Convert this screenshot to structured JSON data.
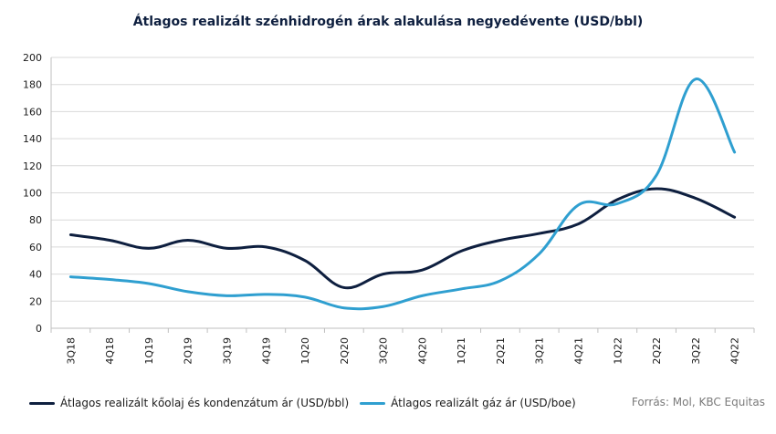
{
  "chart_data": {
    "type": "line",
    "title": "Átlagos realizált szénhidrogén árak alakulása negyedévente  (USD/bbl)",
    "xlabel": "",
    "ylabel": "",
    "categories": [
      "3Q18",
      "4Q18",
      "1Q19",
      "2Q19",
      "3Q19",
      "4Q19",
      "1Q20",
      "2Q20",
      "3Q20",
      "4Q20",
      "1Q21",
      "2Q21",
      "3Q21",
      "4Q21",
      "1Q22",
      "2Q22",
      "3Q22",
      "4Q22"
    ],
    "ylim": [
      0,
      200
    ],
    "yticks": [
      0,
      20,
      40,
      60,
      80,
      100,
      120,
      140,
      160,
      180,
      200
    ],
    "grid": true,
    "legend_position": "bottom",
    "series": [
      {
        "name": "Átlagos realizált kőolaj és kondenzátum ár (USD/bbl)",
        "color": "#0e1f3f",
        "values": [
          69,
          65,
          59,
          65,
          59,
          60,
          50,
          30,
          40,
          43,
          57,
          65,
          70,
          77,
          95,
          103,
          96,
          82
        ]
      },
      {
        "name": "Átlagos realizált gáz ár (USD/boe)",
        "color": "#2f9fd0",
        "values": [
          38,
          36,
          33,
          27,
          24,
          25,
          23,
          15,
          16,
          24,
          29,
          35,
          55,
          91,
          92,
          113,
          184,
          130
        ]
      }
    ]
  },
  "source": "Forrás: Mol, KBC Equitas"
}
